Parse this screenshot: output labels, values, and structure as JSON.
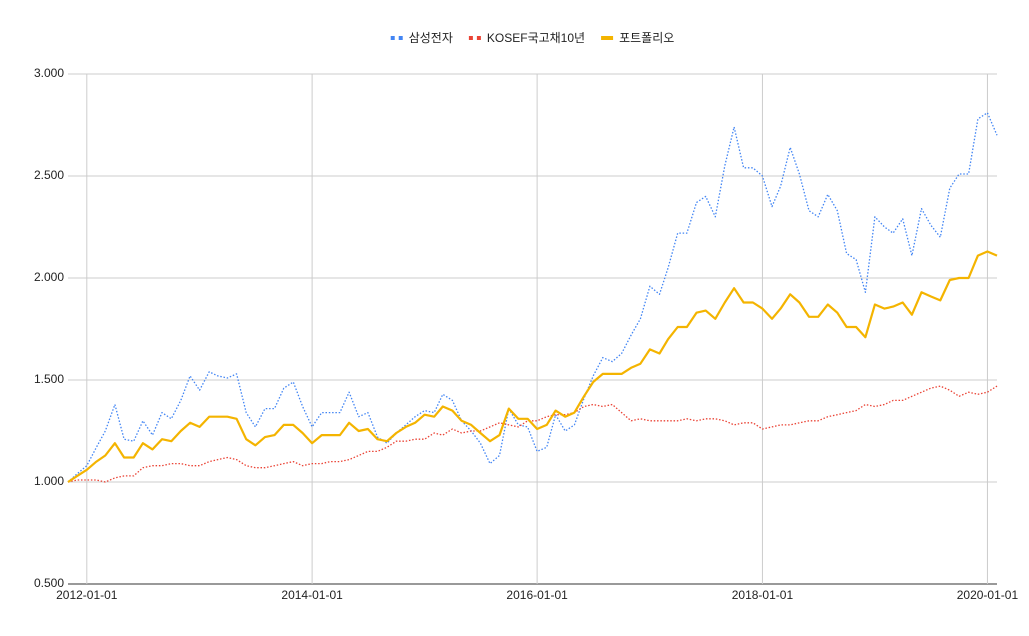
{
  "chart_data": {
    "type": "line",
    "x": [
      "2011-11-01",
      "2011-12-01",
      "2012-01-01",
      "2012-02-01",
      "2012-03-01",
      "2012-04-01",
      "2012-05-01",
      "2012-06-01",
      "2012-07-01",
      "2012-08-01",
      "2012-09-01",
      "2012-10-01",
      "2012-11-01",
      "2012-12-01",
      "2013-01-01",
      "2013-02-01",
      "2013-03-01",
      "2013-04-01",
      "2013-05-01",
      "2013-06-01",
      "2013-07-01",
      "2013-08-01",
      "2013-09-01",
      "2013-10-01",
      "2013-11-01",
      "2013-12-01",
      "2014-01-01",
      "2014-02-01",
      "2014-03-01",
      "2014-04-01",
      "2014-05-01",
      "2014-06-01",
      "2014-07-01",
      "2014-08-01",
      "2014-09-01",
      "2014-10-01",
      "2014-11-01",
      "2014-12-01",
      "2015-01-01",
      "2015-02-01",
      "2015-03-01",
      "2015-04-01",
      "2015-05-01",
      "2015-06-01",
      "2015-07-01",
      "2015-08-01",
      "2015-09-01",
      "2015-10-01",
      "2015-11-01",
      "2015-12-01",
      "2016-01-01",
      "2016-02-01",
      "2016-03-01",
      "2016-04-01",
      "2016-05-01",
      "2016-06-01",
      "2016-07-01",
      "2016-08-01",
      "2016-09-01",
      "2016-10-01",
      "2016-11-01",
      "2016-12-01",
      "2017-01-01",
      "2017-02-01",
      "2017-03-01",
      "2017-04-01",
      "2017-05-01",
      "2017-06-01",
      "2017-07-01",
      "2017-08-01",
      "2017-09-01",
      "2017-10-01",
      "2017-11-01",
      "2017-12-01",
      "2018-01-01",
      "2018-02-01",
      "2018-03-01",
      "2018-04-01",
      "2018-05-01",
      "2018-06-01",
      "2018-07-01",
      "2018-08-01",
      "2018-09-01",
      "2018-10-01",
      "2018-11-01",
      "2018-12-01",
      "2019-01-01",
      "2019-02-01",
      "2019-03-01",
      "2019-04-01",
      "2019-05-01",
      "2019-06-01",
      "2019-07-01",
      "2019-08-01",
      "2019-09-01",
      "2019-10-01",
      "2019-11-01",
      "2019-12-01",
      "2020-01-01",
      "2020-02-01"
    ],
    "series": [
      {
        "name": "삼성전자",
        "color": "#4285f4",
        "line_style": "dotted",
        "values": [
          1.0,
          1.04,
          1.08,
          1.17,
          1.25,
          1.38,
          1.21,
          1.2,
          1.3,
          1.23,
          1.34,
          1.31,
          1.4,
          1.52,
          1.45,
          1.54,
          1.52,
          1.51,
          1.53,
          1.34,
          1.27,
          1.36,
          1.36,
          1.46,
          1.49,
          1.37,
          1.27,
          1.34,
          1.34,
          1.34,
          1.44,
          1.32,
          1.34,
          1.22,
          1.19,
          1.24,
          1.28,
          1.32,
          1.35,
          1.34,
          1.43,
          1.4,
          1.3,
          1.25,
          1.19,
          1.09,
          1.13,
          1.36,
          1.28,
          1.27,
          1.15,
          1.17,
          1.33,
          1.25,
          1.28,
          1.41,
          1.52,
          1.61,
          1.59,
          1.63,
          1.72,
          1.8,
          1.96,
          1.92,
          2.05,
          2.22,
          2.22,
          2.37,
          2.4,
          2.3,
          2.55,
          2.74,
          2.54,
          2.54,
          2.5,
          2.35,
          2.45,
          2.64,
          2.51,
          2.33,
          2.3,
          2.41,
          2.33,
          2.12,
          2.09,
          1.93,
          2.3,
          2.25,
          2.22,
          2.29,
          2.11,
          2.34,
          2.26,
          2.2,
          2.44,
          2.51,
          2.51,
          2.78,
          2.81,
          2.7
        ]
      },
      {
        "name": "KOSEF국고채10년",
        "color": "#ea4335",
        "line_style": "dotted",
        "values": [
          1.0,
          1.01,
          1.01,
          1.01,
          1.0,
          1.02,
          1.03,
          1.03,
          1.07,
          1.08,
          1.08,
          1.09,
          1.09,
          1.08,
          1.08,
          1.1,
          1.11,
          1.12,
          1.11,
          1.08,
          1.07,
          1.07,
          1.08,
          1.09,
          1.1,
          1.08,
          1.09,
          1.09,
          1.1,
          1.1,
          1.11,
          1.13,
          1.15,
          1.15,
          1.17,
          1.2,
          1.2,
          1.21,
          1.21,
          1.24,
          1.23,
          1.26,
          1.24,
          1.25,
          1.25,
          1.27,
          1.29,
          1.28,
          1.27,
          1.3,
          1.3,
          1.32,
          1.33,
          1.33,
          1.34,
          1.37,
          1.38,
          1.37,
          1.38,
          1.34,
          1.3,
          1.31,
          1.3,
          1.3,
          1.3,
          1.3,
          1.31,
          1.3,
          1.31,
          1.31,
          1.3,
          1.28,
          1.29,
          1.29,
          1.26,
          1.27,
          1.28,
          1.28,
          1.29,
          1.3,
          1.3,
          1.32,
          1.33,
          1.34,
          1.35,
          1.38,
          1.37,
          1.38,
          1.4,
          1.4,
          1.42,
          1.44,
          1.46,
          1.47,
          1.45,
          1.42,
          1.44,
          1.43,
          1.44,
          1.47
        ]
      },
      {
        "name": "포트폴리오",
        "color": "#f4b400",
        "line_style": "solid",
        "values": [
          1.0,
          1.03,
          1.06,
          1.1,
          1.13,
          1.19,
          1.12,
          1.12,
          1.19,
          1.16,
          1.21,
          1.2,
          1.25,
          1.29,
          1.27,
          1.32,
          1.32,
          1.32,
          1.31,
          1.21,
          1.18,
          1.22,
          1.23,
          1.28,
          1.28,
          1.24,
          1.19,
          1.23,
          1.23,
          1.23,
          1.29,
          1.25,
          1.26,
          1.21,
          1.2,
          1.24,
          1.27,
          1.29,
          1.33,
          1.32,
          1.37,
          1.35,
          1.3,
          1.28,
          1.24,
          1.2,
          1.23,
          1.36,
          1.31,
          1.31,
          1.26,
          1.28,
          1.35,
          1.32,
          1.34,
          1.42,
          1.49,
          1.53,
          1.53,
          1.53,
          1.56,
          1.58,
          1.65,
          1.63,
          1.7,
          1.76,
          1.76,
          1.83,
          1.84,
          1.8,
          1.88,
          1.95,
          1.88,
          1.88,
          1.85,
          1.8,
          1.85,
          1.92,
          1.88,
          1.81,
          1.81,
          1.87,
          1.83,
          1.76,
          1.76,
          1.71,
          1.87,
          1.85,
          1.86,
          1.88,
          1.82,
          1.93,
          1.91,
          1.89,
          1.99,
          2.0,
          2.0,
          2.11,
          2.13,
          2.11
        ]
      }
    ],
    "xlim": [
      "2011-11-01",
      "2020-02-01"
    ],
    "xticks": [
      "2012-01-01",
      "2014-01-01",
      "2016-01-01",
      "2018-01-01",
      "2020-01-01"
    ],
    "ylim": [
      0.5,
      3
    ],
    "yticks": [
      {
        "value": 0.5,
        "label": "0.500"
      },
      {
        "value": 1,
        "label": "1.000"
      },
      {
        "value": 1.5,
        "label": "1.500"
      },
      {
        "value": 2,
        "label": "2.000"
      },
      {
        "value": 2.5,
        "label": "2.500"
      },
      {
        "value": 3,
        "label": "3.000"
      }
    ],
    "grid": true,
    "legend": "top"
  }
}
